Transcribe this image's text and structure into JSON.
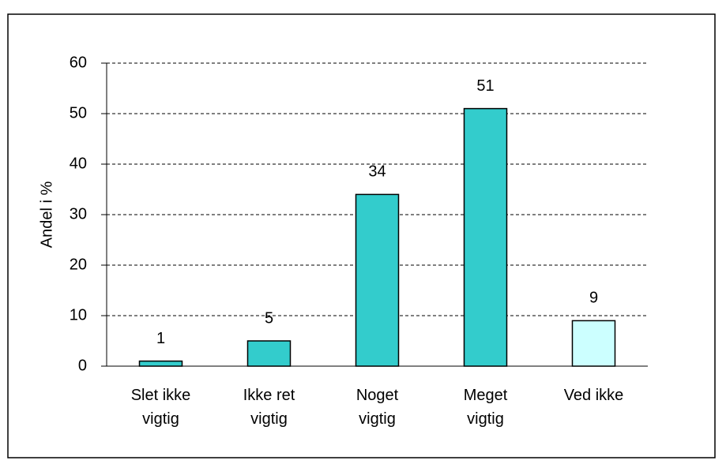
{
  "chart_data": {
    "type": "bar",
    "categories": [
      "Slet ikke vigtig",
      "Ikke ret vigtig",
      "Noget vigtig",
      "Meget vigtig",
      "Ved ikke"
    ],
    "values": [
      1,
      5,
      34,
      51,
      9
    ],
    "colors": [
      "#33cccc",
      "#33cccc",
      "#33cccc",
      "#33cccc",
      "#ccffff"
    ],
    "y_label": "Andel i %",
    "ylim": [
      0,
      60
    ],
    "yticks": [
      0,
      10,
      20,
      30,
      40,
      50,
      60
    ],
    "grid": true
  }
}
